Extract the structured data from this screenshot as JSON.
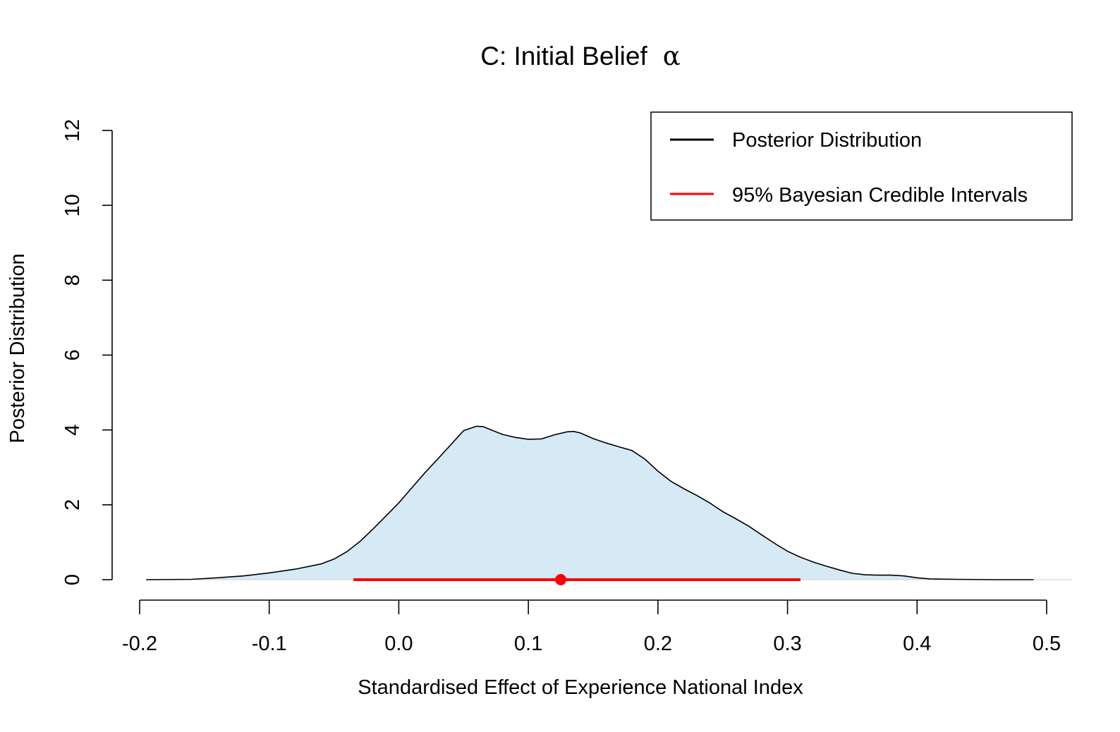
{
  "chart_data": {
    "type": "area",
    "title": "C: Initial Belief",
    "title_symbol": "α",
    "xlabel": "Standardised Effect of Experience National Index",
    "ylabel": "Posterior Distribution",
    "xlim": [
      -0.2,
      0.5
    ],
    "ylim": [
      0,
      12
    ],
    "x_ticks": [
      -0.2,
      -0.1,
      0.0,
      0.1,
      0.2,
      0.3,
      0.4,
      0.5
    ],
    "x_tick_labels": [
      "-0.2",
      "-0.1",
      "0.0",
      "0.1",
      "0.2",
      "0.3",
      "0.4",
      "0.5"
    ],
    "y_ticks": [
      0,
      2,
      4,
      6,
      8,
      10,
      12
    ],
    "y_tick_labels": [
      "0",
      "2",
      "4",
      "6",
      "8",
      "10",
      "12"
    ],
    "grid": false,
    "legend_position": "top-right",
    "legend": [
      {
        "label": "Posterior Distribution",
        "color": "#000000"
      },
      {
        "label": "95% Bayesian Credible Intervals",
        "color": "#ff0000"
      }
    ],
    "fill_color": "#d5eaf5",
    "series": [
      {
        "name": "Posterior Distribution",
        "x": [
          -0.195,
          -0.16,
          -0.14,
          -0.12,
          -0.1,
          -0.08,
          -0.06,
          -0.05,
          -0.04,
          -0.03,
          -0.02,
          -0.01,
          0.0,
          0.01,
          0.02,
          0.03,
          0.04,
          0.05,
          0.06,
          0.065,
          0.07,
          0.08,
          0.09,
          0.1,
          0.11,
          0.12,
          0.13,
          0.135,
          0.14,
          0.15,
          0.16,
          0.17,
          0.18,
          0.19,
          0.2,
          0.21,
          0.22,
          0.23,
          0.24,
          0.25,
          0.26,
          0.27,
          0.28,
          0.29,
          0.3,
          0.31,
          0.32,
          0.33,
          0.34,
          0.35,
          0.36,
          0.37,
          0.38,
          0.39,
          0.4,
          0.41,
          0.43,
          0.46,
          0.49
        ],
        "y": [
          0.0,
          0.01,
          0.05,
          0.1,
          0.18,
          0.28,
          0.42,
          0.55,
          0.75,
          1.02,
          1.35,
          1.7,
          2.05,
          2.45,
          2.85,
          3.22,
          3.6,
          3.98,
          4.1,
          4.09,
          4.02,
          3.88,
          3.8,
          3.75,
          3.76,
          3.87,
          3.95,
          3.96,
          3.92,
          3.77,
          3.65,
          3.55,
          3.45,
          3.22,
          2.9,
          2.63,
          2.43,
          2.25,
          2.05,
          1.82,
          1.63,
          1.43,
          1.2,
          0.97,
          0.76,
          0.6,
          0.47,
          0.36,
          0.26,
          0.17,
          0.13,
          0.12,
          0.12,
          0.1,
          0.05,
          0.02,
          0.01,
          0.0,
          0.0
        ]
      },
      {
        "name": "95% Bayesian Credible Intervals",
        "interval": [
          -0.035,
          0.31
        ],
        "point_estimate": 0.125
      }
    ]
  }
}
